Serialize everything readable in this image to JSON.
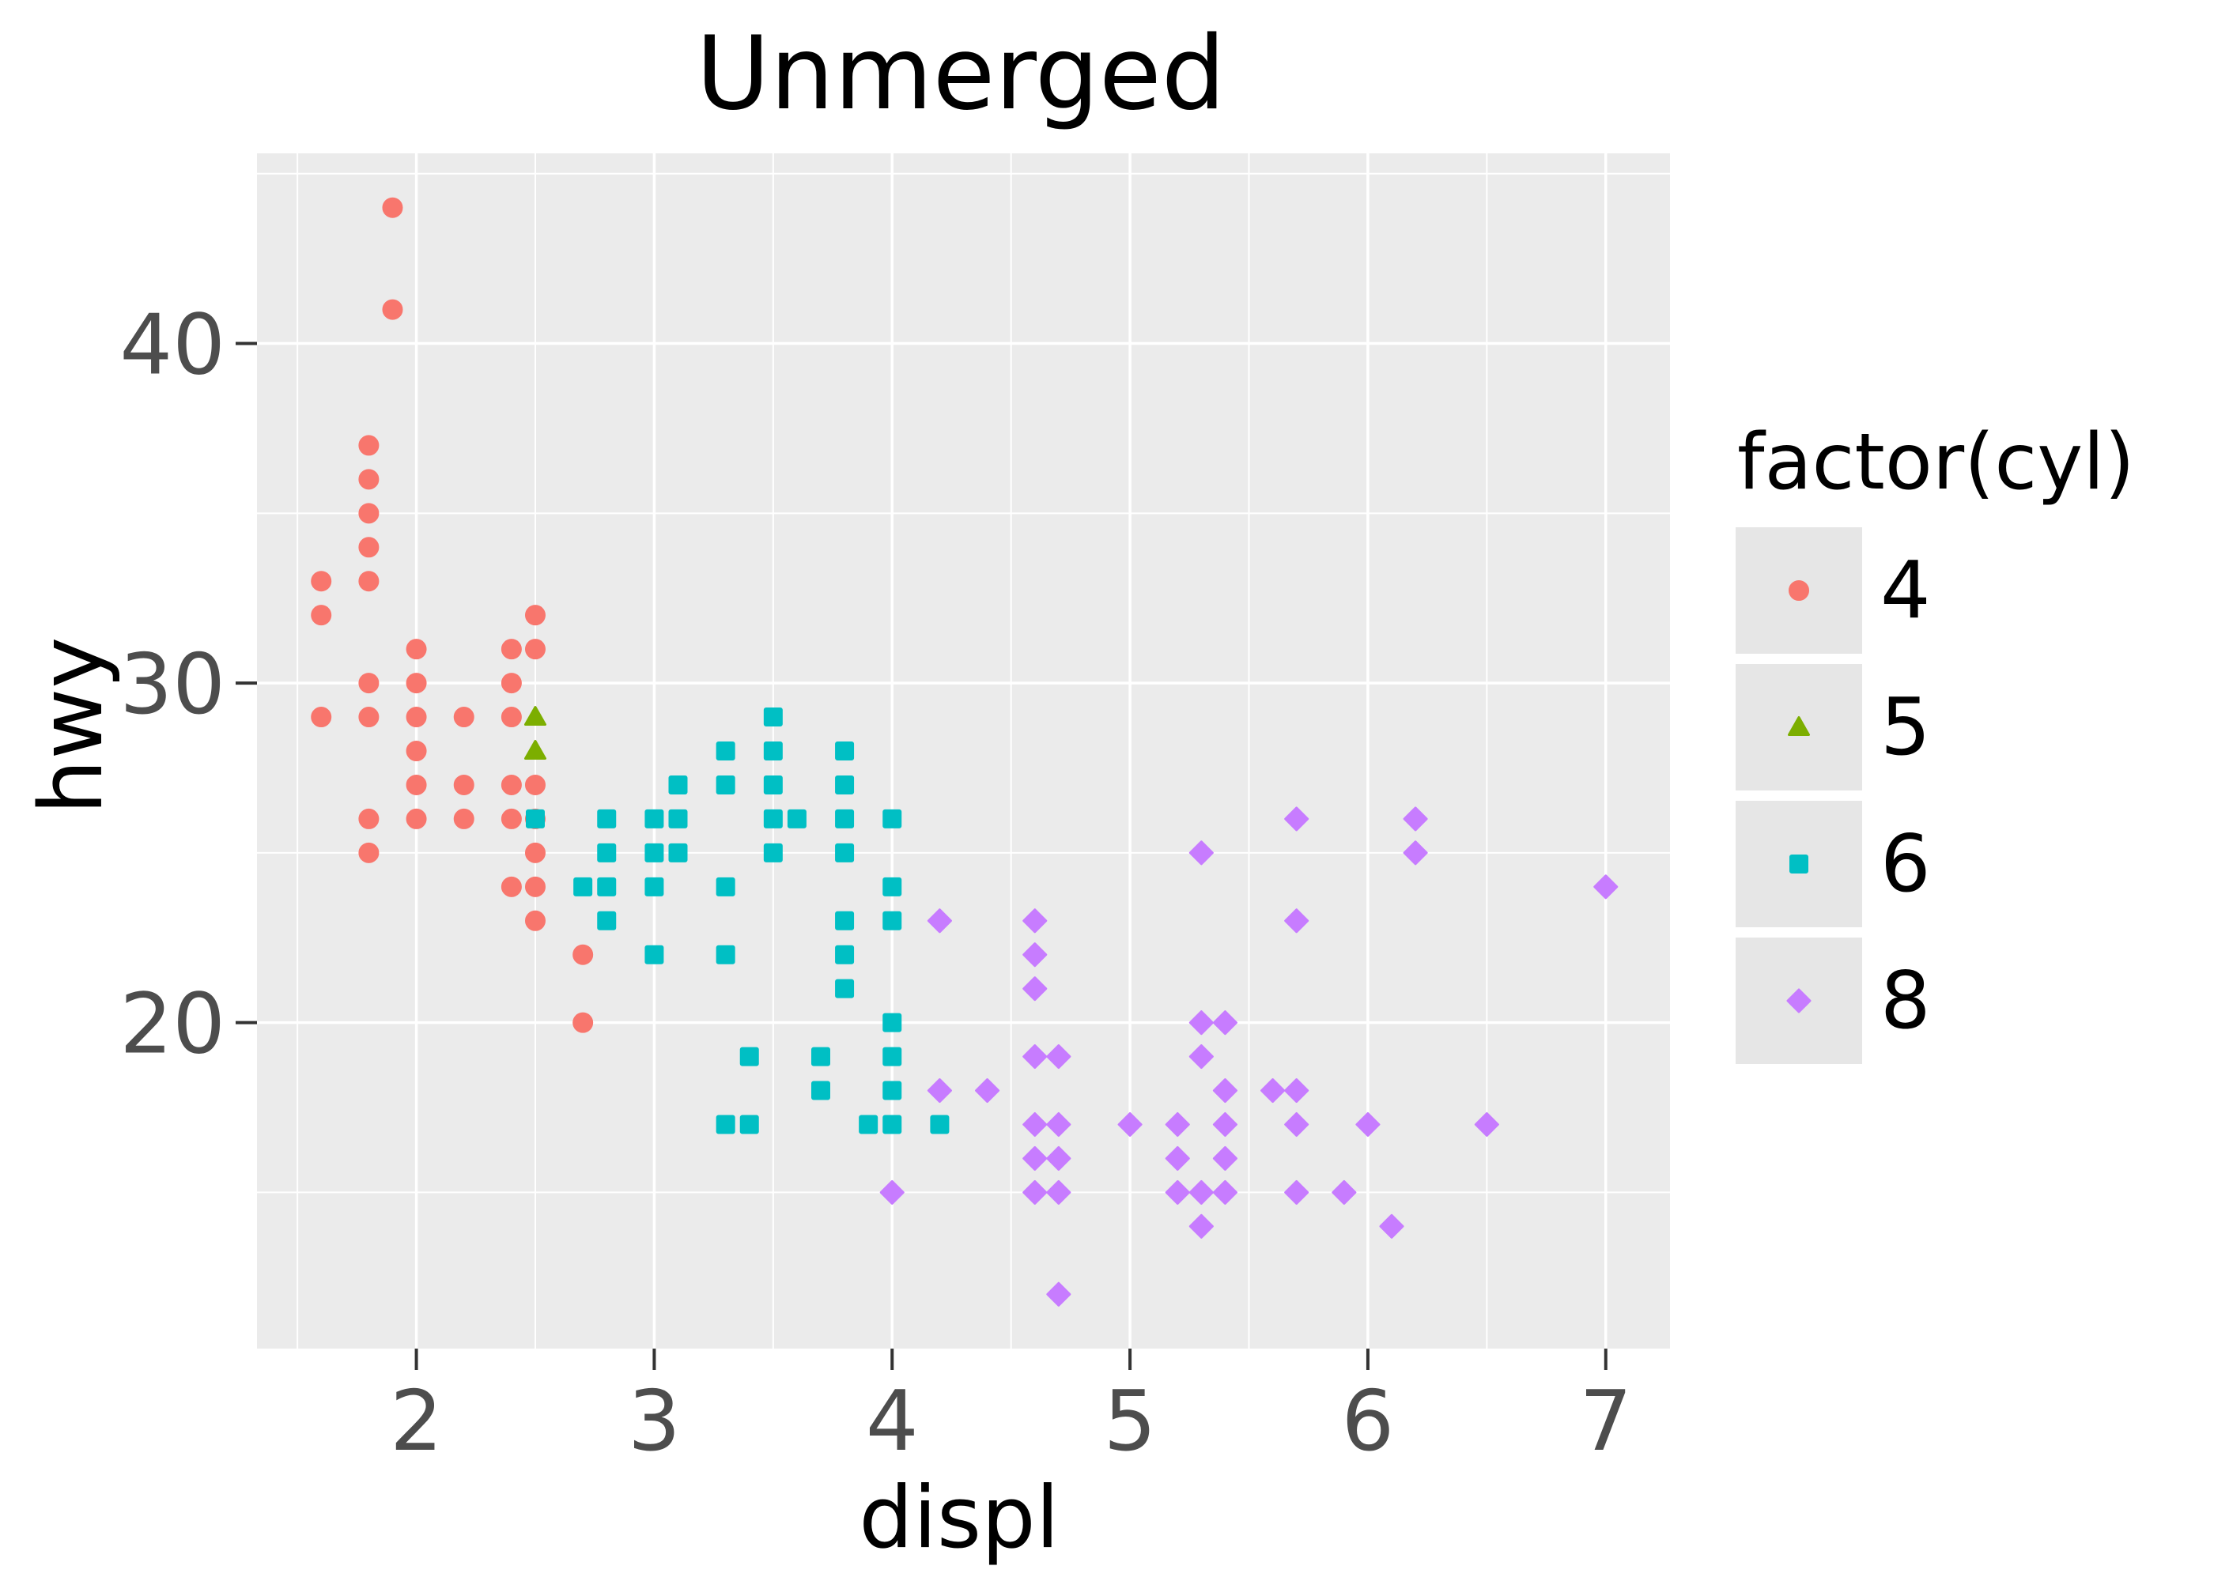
{
  "title": "Unmerged",
  "axes": {
    "x": {
      "label": "displ",
      "ticks": [
        "2",
        "3",
        "4",
        "5",
        "6",
        "7"
      ],
      "tick_values": [
        2,
        3,
        4,
        5,
        6,
        7
      ],
      "minor_breaks": [
        1.5,
        2.5,
        3.5,
        4.5,
        5.5,
        6.5
      ],
      "domain": [
        1.33,
        7.27
      ]
    },
    "y": {
      "label": "hwy",
      "ticks": [
        "20",
        "30",
        "40"
      ],
      "tick_values": [
        20,
        30,
        40
      ],
      "minor_breaks": [
        15,
        25,
        35,
        45
      ],
      "domain": [
        10.4,
        45.6
      ]
    }
  },
  "legend": {
    "title": "factor(cyl)",
    "items": [
      {
        "label": "4",
        "shape": "circle",
        "color": "#F8766D"
      },
      {
        "label": "5",
        "shape": "triangle",
        "color": "#7CAE00"
      },
      {
        "label": "6",
        "shape": "square",
        "color": "#00BFC4"
      },
      {
        "label": "8",
        "shape": "diamond",
        "color": "#C77CFF"
      }
    ]
  },
  "colors": {
    "panel_bg": "#EBEBEB",
    "grid": "#FFFFFF",
    "tick_mark": "#333333",
    "tick_label": "#4D4D4D",
    "text": "#000000",
    "legend_key_bg": "#E6E6E6",
    "cyl4": "#F8766D",
    "cyl5": "#7CAE00",
    "cyl6": "#00BFC4",
    "cyl8": "#C77CFF"
  },
  "chart_data": {
    "type": "scatter",
    "title": "Unmerged",
    "xlabel": "displ",
    "ylabel": "hwy",
    "xlim": [
      1.33,
      7.27
    ],
    "ylim": [
      10.4,
      45.6
    ],
    "x_breaks": [
      2,
      3,
      4,
      5,
      6,
      7
    ],
    "y_breaks": [
      20,
      30,
      40
    ],
    "grid": "on",
    "legend_position": "right",
    "series": [
      {
        "name": "4",
        "shape": "circle",
        "color": "#F8766D",
        "points": [
          [
            1.6,
            29
          ],
          [
            1.6,
            32
          ],
          [
            1.6,
            33
          ],
          [
            1.8,
            25
          ],
          [
            1.8,
            26
          ],
          [
            1.8,
            29
          ],
          [
            1.8,
            30
          ],
          [
            1.8,
            33
          ],
          [
            1.8,
            34
          ],
          [
            1.8,
            35
          ],
          [
            1.8,
            36
          ],
          [
            1.8,
            37
          ],
          [
            1.9,
            41
          ],
          [
            1.9,
            44
          ],
          [
            2.0,
            26
          ],
          [
            2.0,
            27
          ],
          [
            2.0,
            28
          ],
          [
            2.0,
            29
          ],
          [
            2.0,
            30
          ],
          [
            2.0,
            31
          ],
          [
            2.2,
            26
          ],
          [
            2.2,
            27
          ],
          [
            2.2,
            29
          ],
          [
            2.4,
            24
          ],
          [
            2.4,
            26
          ],
          [
            2.4,
            27
          ],
          [
            2.4,
            29
          ],
          [
            2.4,
            30
          ],
          [
            2.4,
            31
          ],
          [
            2.5,
            23
          ],
          [
            2.5,
            24
          ],
          [
            2.5,
            25
          ],
          [
            2.5,
            26
          ],
          [
            2.5,
            27
          ],
          [
            2.5,
            31
          ],
          [
            2.5,
            32
          ],
          [
            2.7,
            20
          ],
          [
            2.7,
            22
          ]
        ]
      },
      {
        "name": "5",
        "shape": "triangle",
        "color": "#7CAE00",
        "points": [
          [
            2.5,
            28
          ],
          [
            2.5,
            29
          ]
        ]
      },
      {
        "name": "6",
        "shape": "square",
        "color": "#00BFC4",
        "points": [
          [
            2.5,
            26
          ],
          [
            2.7,
            24
          ],
          [
            2.8,
            23
          ],
          [
            2.8,
            24
          ],
          [
            2.8,
            25
          ],
          [
            2.8,
            26
          ],
          [
            3.0,
            22
          ],
          [
            3.0,
            24
          ],
          [
            3.0,
            25
          ],
          [
            3.0,
            26
          ],
          [
            3.1,
            25
          ],
          [
            3.1,
            26
          ],
          [
            3.1,
            27
          ],
          [
            3.3,
            17
          ],
          [
            3.3,
            22
          ],
          [
            3.3,
            24
          ],
          [
            3.3,
            27
          ],
          [
            3.3,
            28
          ],
          [
            3.4,
            17
          ],
          [
            3.4,
            19
          ],
          [
            3.5,
            25
          ],
          [
            3.5,
            26
          ],
          [
            3.5,
            27
          ],
          [
            3.5,
            28
          ],
          [
            3.5,
            29
          ],
          [
            3.6,
            26
          ],
          [
            3.7,
            18
          ],
          [
            3.7,
            19
          ],
          [
            3.8,
            21
          ],
          [
            3.8,
            22
          ],
          [
            3.8,
            23
          ],
          [
            3.8,
            25
          ],
          [
            3.8,
            26
          ],
          [
            3.8,
            27
          ],
          [
            3.8,
            28
          ],
          [
            3.9,
            17
          ],
          [
            4.0,
            17
          ],
          [
            4.0,
            18
          ],
          [
            4.0,
            19
          ],
          [
            4.0,
            20
          ],
          [
            4.0,
            23
          ],
          [
            4.0,
            24
          ],
          [
            4.0,
            26
          ],
          [
            4.2,
            17
          ]
        ]
      },
      {
        "name": "8",
        "shape": "diamond",
        "color": "#C77CFF",
        "points": [
          [
            4.0,
            15
          ],
          [
            4.2,
            18
          ],
          [
            4.2,
            23
          ],
          [
            4.4,
            18
          ],
          [
            4.6,
            15
          ],
          [
            4.6,
            16
          ],
          [
            4.6,
            17
          ],
          [
            4.6,
            19
          ],
          [
            4.6,
            21
          ],
          [
            4.6,
            22
          ],
          [
            4.6,
            23
          ],
          [
            4.7,
            12
          ],
          [
            4.7,
            15
          ],
          [
            4.7,
            16
          ],
          [
            4.7,
            17
          ],
          [
            4.7,
            19
          ],
          [
            5.0,
            17
          ],
          [
            5.2,
            15
          ],
          [
            5.2,
            16
          ],
          [
            5.2,
            17
          ],
          [
            5.3,
            14
          ],
          [
            5.3,
            15
          ],
          [
            5.3,
            19
          ],
          [
            5.3,
            20
          ],
          [
            5.3,
            25
          ],
          [
            5.4,
            15
          ],
          [
            5.4,
            16
          ],
          [
            5.4,
            17
          ],
          [
            5.4,
            18
          ],
          [
            5.4,
            20
          ],
          [
            5.6,
            18
          ],
          [
            5.7,
            15
          ],
          [
            5.7,
            17
          ],
          [
            5.7,
            18
          ],
          [
            5.7,
            23
          ],
          [
            5.7,
            26
          ],
          [
            5.9,
            15
          ],
          [
            6.0,
            17
          ],
          [
            6.1,
            14
          ],
          [
            6.2,
            25
          ],
          [
            6.2,
            26
          ],
          [
            6.5,
            17
          ],
          [
            7.0,
            24
          ]
        ]
      }
    ]
  }
}
